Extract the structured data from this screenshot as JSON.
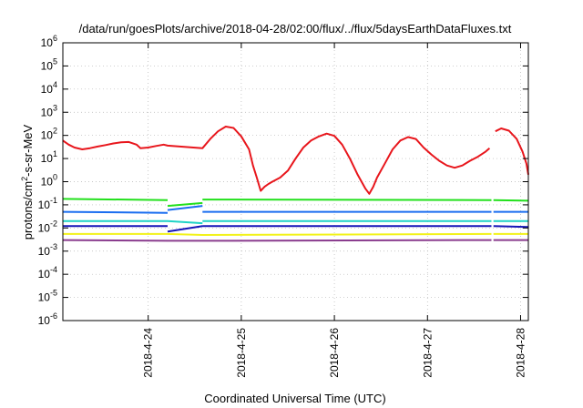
{
  "chart_data": {
    "type": "line",
    "title": "/data/run/goesPlots/archive/2018-04-28/02:00/flux/../flux/5daysEarthDataFluxes.txt",
    "xlabel": "Coordinated Universal Time (UTC)",
    "ylabel": "protons/cm2-s-sr-MeV",
    "ylabel_parts": {
      "a": "protons/cm",
      "b": "2",
      "c": "-s-sr-MeV"
    },
    "y_scale": "log",
    "ylim": [
      1e-06,
      1000000.0
    ],
    "y_ticks": [
      {
        "value": 1e-06,
        "base": "10",
        "exp": "-6"
      },
      {
        "value": 1e-05,
        "base": "10",
        "exp": "-5"
      },
      {
        "value": 0.0001,
        "base": "10",
        "exp": "-4"
      },
      {
        "value": 0.001,
        "base": "10",
        "exp": "-3"
      },
      {
        "value": 0.01,
        "base": "10",
        "exp": "-2"
      },
      {
        "value": 0.1,
        "base": "10",
        "exp": "-1"
      },
      {
        "value": 1,
        "base": "10",
        "exp": "0"
      },
      {
        "value": 10,
        "base": "10",
        "exp": "1"
      },
      {
        "value": 100,
        "base": "10",
        "exp": "2"
      },
      {
        "value": 1000,
        "base": "10",
        "exp": "3"
      },
      {
        "value": 10000,
        "base": "10",
        "exp": "4"
      },
      {
        "value": 100000,
        "base": "10",
        "exp": "5"
      },
      {
        "value": 1000000,
        "base": "10",
        "exp": "6"
      }
    ],
    "xlim": [
      "2018-04-23T02:00",
      "2018-04-28T02:00"
    ],
    "x_ticks": [
      {
        "value": "2018-04-24T00:00",
        "label": "2018-4-24"
      },
      {
        "value": "2018-04-25T00:00",
        "label": "2018-4-25"
      },
      {
        "value": "2018-04-26T00:00",
        "label": "2018-4-26"
      },
      {
        "value": "2018-04-27T00:00",
        "label": "2018-4-27"
      },
      {
        "value": "2018-04-28T00:00",
        "label": "2018-4-28"
      }
    ],
    "grid": true,
    "legend": "none",
    "series": [
      {
        "color": "#e8161c",
        "points": [
          [
            "2018-04-23T02:00",
            60
          ],
          [
            "2018-04-23T03:30",
            40
          ],
          [
            "2018-04-23T05:00",
            30
          ],
          [
            "2018-04-23T07:00",
            25
          ],
          [
            "2018-04-23T09:00",
            28
          ],
          [
            "2018-04-23T11:00",
            33
          ],
          [
            "2018-04-23T13:00",
            38
          ],
          [
            "2018-04-23T15:00",
            45
          ],
          [
            "2018-04-23T17:00",
            50
          ],
          [
            "2018-04-23T19:00",
            52
          ],
          [
            "2018-04-23T21:00",
            40
          ],
          [
            "2018-04-23T22:00",
            28
          ],
          [
            "2018-04-24T00:00",
            30
          ],
          [
            "2018-04-24T02:00",
            35
          ],
          [
            "2018-04-24T04:00",
            40
          ],
          [
            "2018-04-24T05:00",
            36
          ],
          [
            "2018-04-24T14:00",
            28
          ],
          [
            "2018-04-24T16:00",
            70
          ],
          [
            "2018-04-24T18:00",
            150
          ],
          [
            "2018-04-24T20:00",
            240
          ],
          [
            "2018-04-24T22:00",
            210
          ],
          [
            "2018-04-25T00:00",
            90
          ],
          [
            "2018-04-25T02:00",
            25
          ],
          [
            "2018-04-25T03:00",
            5
          ],
          [
            "2018-04-25T04:00",
            1.5
          ],
          [
            "2018-04-25T05:00",
            0.4
          ],
          [
            "2018-04-25T06:00",
            0.6
          ],
          [
            "2018-04-25T07:00",
            0.8
          ],
          [
            "2018-04-25T08:00",
            1.0
          ],
          [
            "2018-04-25T10:00",
            1.5
          ],
          [
            "2018-04-25T12:00",
            3
          ],
          [
            "2018-04-25T14:00",
            10
          ],
          [
            "2018-04-25T16:00",
            30
          ],
          [
            "2018-04-25T18:00",
            60
          ],
          [
            "2018-04-25T20:00",
            90
          ],
          [
            "2018-04-25T22:00",
            120
          ],
          [
            "2018-04-26T00:00",
            95
          ],
          [
            "2018-04-26T02:00",
            40
          ],
          [
            "2018-04-26T04:00",
            10
          ],
          [
            "2018-04-26T06:00",
            2
          ],
          [
            "2018-04-26T07:00",
            1
          ],
          [
            "2018-04-26T08:00",
            0.5
          ],
          [
            "2018-04-26T09:00",
            0.3
          ],
          [
            "2018-04-26T10:00",
            0.6
          ],
          [
            "2018-04-26T11:00",
            1.5
          ],
          [
            "2018-04-26T13:00",
            6
          ],
          [
            "2018-04-26T15:00",
            25
          ],
          [
            "2018-04-26T17:00",
            60
          ],
          [
            "2018-04-26T19:00",
            85
          ],
          [
            "2018-04-26T21:00",
            70
          ],
          [
            "2018-04-26T23:00",
            30
          ],
          [
            "2018-04-27T01:00",
            15
          ],
          [
            "2018-04-27T03:00",
            8
          ],
          [
            "2018-04-27T05:00",
            5
          ],
          [
            "2018-04-27T07:00",
            4
          ],
          [
            "2018-04-27T09:00",
            5
          ],
          [
            "2018-04-27T11:00",
            8
          ],
          [
            "2018-04-27T13:00",
            12
          ],
          [
            "2018-04-27T15:00",
            20
          ],
          [
            "2018-04-27T16:00",
            28
          ],
          [
            null,
            null
          ],
          [
            "2018-04-27T17:30",
            150
          ],
          [
            "2018-04-27T19:00",
            200
          ],
          [
            "2018-04-27T21:00",
            160
          ],
          [
            "2018-04-27T23:00",
            70
          ],
          [
            "2018-04-28T00:30",
            20
          ],
          [
            "2018-04-28T01:30",
            6
          ],
          [
            "2018-04-28T02:00",
            2
          ]
        ]
      },
      {
        "color": "#22e01c",
        "points": [
          [
            "2018-04-23T02:00",
            0.18
          ],
          [
            "2018-04-24T05:00",
            0.16
          ],
          [
            null,
            null
          ],
          [
            "2018-04-24T05:00",
            0.09
          ],
          [
            "2018-04-24T14:00",
            0.12
          ],
          [
            null,
            null
          ],
          [
            "2018-04-24T14:00",
            0.17
          ],
          [
            "2018-04-27T16:30",
            0.16
          ],
          [
            null,
            null
          ],
          [
            "2018-04-27T17:00",
            0.16
          ],
          [
            "2018-04-28T02:00",
            0.15
          ]
        ]
      },
      {
        "color": "#1a6ef0",
        "points": [
          [
            "2018-04-23T02:00",
            0.05
          ],
          [
            "2018-04-24T05:00",
            0.045
          ],
          [
            null,
            null
          ],
          [
            "2018-04-24T05:00",
            0.06
          ],
          [
            "2018-04-24T14:00",
            0.09
          ],
          [
            null,
            null
          ],
          [
            "2018-04-24T14:00",
            0.05
          ],
          [
            "2018-04-27T16:30",
            0.05
          ],
          [
            null,
            null
          ],
          [
            "2018-04-27T17:00",
            0.05
          ],
          [
            "2018-04-28T02:00",
            0.05
          ]
        ]
      },
      {
        "color": "#1fd3c6",
        "points": [
          [
            "2018-04-23T02:00",
            0.02
          ],
          [
            "2018-04-24T05:00",
            0.02
          ],
          [
            null,
            null
          ],
          [
            "2018-04-24T05:00",
            0.02
          ],
          [
            "2018-04-24T14:00",
            0.016
          ],
          [
            null,
            null
          ],
          [
            "2018-04-24T14:00",
            0.02
          ],
          [
            "2018-04-27T16:30",
            0.02
          ],
          [
            null,
            null
          ],
          [
            "2018-04-27T17:00",
            0.02
          ],
          [
            "2018-04-28T02:00",
            0.02
          ]
        ]
      },
      {
        "color": "#1616b8",
        "points": [
          [
            "2018-04-23T02:00",
            0.012
          ],
          [
            "2018-04-24T05:00",
            0.012
          ],
          [
            null,
            null
          ],
          [
            "2018-04-24T05:00",
            0.007
          ],
          [
            "2018-04-24T14:00",
            0.012
          ],
          [
            null,
            null
          ],
          [
            "2018-04-24T14:00",
            0.012
          ],
          [
            "2018-04-27T16:30",
            0.012
          ],
          [
            null,
            null
          ],
          [
            "2018-04-27T17:00",
            0.012
          ],
          [
            "2018-04-28T02:00",
            0.011
          ]
        ]
      },
      {
        "color": "#f2f21a",
        "points": [
          [
            "2018-04-23T02:00",
            0.0055
          ],
          [
            "2018-04-24T05:00",
            0.0055
          ],
          [
            "2018-04-24T14:00",
            0.005
          ],
          [
            "2018-04-27T16:30",
            0.0055
          ],
          [
            null,
            null
          ],
          [
            "2018-04-27T17:00",
            0.0055
          ],
          [
            "2018-04-28T02:00",
            0.0055
          ]
        ]
      },
      {
        "color": "#8a3c8e",
        "points": [
          [
            "2018-04-23T02:00",
            0.003
          ],
          [
            "2018-04-24T05:00",
            0.0028
          ],
          [
            "2018-04-24T14:00",
            0.0028
          ],
          [
            "2018-04-27T16:30",
            0.003
          ],
          [
            null,
            null
          ],
          [
            "2018-04-27T17:00",
            0.003
          ],
          [
            "2018-04-28T02:00",
            0.003
          ]
        ]
      }
    ]
  }
}
